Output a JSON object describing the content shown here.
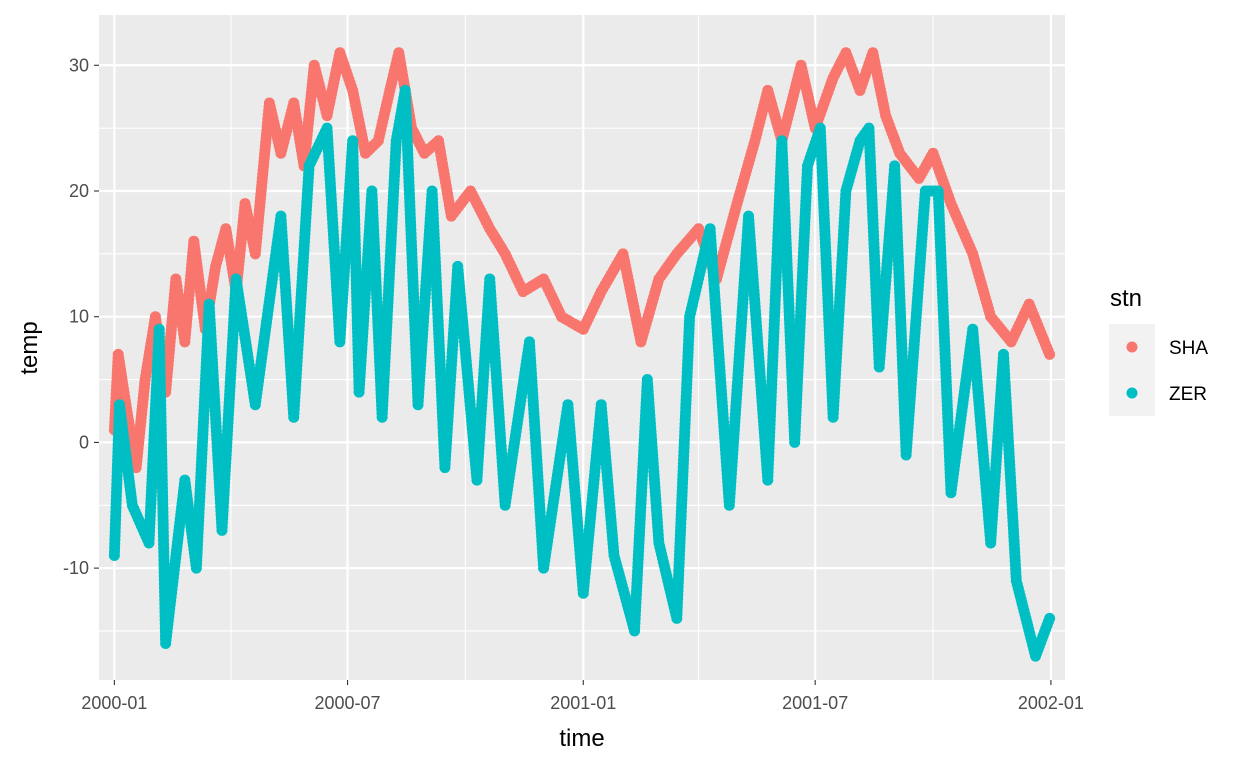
{
  "colors": {
    "panel_background": "#EBEBEB",
    "grid": "#FFFFFF",
    "SHA": "#F8766D",
    "ZER": "#00BFC4"
  },
  "chart_data": {
    "type": "scatter",
    "xlabel": "time",
    "ylabel": "temp",
    "x_scale": "date",
    "xlim": [
      "1999-12-20",
      "2002-01-12"
    ],
    "ylim": [
      -18.9,
      34.0
    ],
    "x_ticks": [
      "2000-01",
      "2000-07",
      "2001-01",
      "2001-07",
      "2002-01"
    ],
    "x_tick_dates": [
      "2000-01-01",
      "2000-07-01",
      "2001-01-01",
      "2001-07-01",
      "2002-01-01"
    ],
    "x_minor_tick_dates": [
      "2000-04-01",
      "2000-10-01",
      "2001-04-01",
      "2001-10-01"
    ],
    "y_ticks": [
      -10,
      0,
      10,
      20,
      30
    ],
    "y_tick_labels": [
      "-10",
      "0",
      "10",
      "20",
      "30"
    ],
    "y_minor_ticks": [
      -15,
      -5,
      5,
      15,
      25
    ],
    "grid": true,
    "legend": {
      "title": "stn",
      "position": "right"
    },
    "series": [
      {
        "name": "SHA",
        "color": "#F8766D",
        "points": [
          [
            "2000-01-01",
            1
          ],
          [
            "2000-01-04",
            7
          ],
          [
            "2000-01-10",
            3
          ],
          [
            "2000-01-18",
            -2
          ],
          [
            "2000-01-25",
            5
          ],
          [
            "2000-02-02",
            10
          ],
          [
            "2000-02-10",
            4
          ],
          [
            "2000-02-18",
            13
          ],
          [
            "2000-02-25",
            8
          ],
          [
            "2000-03-03",
            16
          ],
          [
            "2000-03-12",
            9
          ],
          [
            "2000-03-20",
            14
          ],
          [
            "2000-03-28",
            17
          ],
          [
            "2000-04-05",
            12
          ],
          [
            "2000-04-12",
            19
          ],
          [
            "2000-04-20",
            15
          ],
          [
            "2000-05-01",
            27
          ],
          [
            "2000-05-10",
            23
          ],
          [
            "2000-05-20",
            27
          ],
          [
            "2000-05-28",
            22
          ],
          [
            "2000-06-05",
            30
          ],
          [
            "2000-06-15",
            26
          ],
          [
            "2000-06-25",
            31
          ],
          [
            "2000-07-05",
            28
          ],
          [
            "2000-07-15",
            23
          ],
          [
            "2000-07-25",
            24
          ],
          [
            "2000-08-03",
            28
          ],
          [
            "2000-08-10",
            31
          ],
          [
            "2000-08-20",
            25
          ],
          [
            "2000-08-30",
            23
          ],
          [
            "2000-09-10",
            24
          ],
          [
            "2000-09-20",
            18
          ],
          [
            "2000-10-05",
            20
          ],
          [
            "2000-10-20",
            17
          ],
          [
            "2000-11-01",
            15
          ],
          [
            "2000-11-15",
            12
          ],
          [
            "2000-12-01",
            13
          ],
          [
            "2000-12-15",
            10
          ],
          [
            "2001-01-01",
            9
          ],
          [
            "2001-01-15",
            12
          ],
          [
            "2001-02-01",
            15
          ],
          [
            "2001-02-15",
            8
          ],
          [
            "2001-03-01",
            13
          ],
          [
            "2001-03-15",
            15
          ],
          [
            "2001-04-01",
            17
          ],
          [
            "2001-04-15",
            13
          ],
          [
            "2001-05-01",
            19
          ],
          [
            "2001-05-15",
            24
          ],
          [
            "2001-05-25",
            28
          ],
          [
            "2001-06-05",
            24
          ],
          [
            "2001-06-20",
            30
          ],
          [
            "2001-07-01",
            25
          ],
          [
            "2001-07-15",
            29
          ],
          [
            "2001-07-25",
            31
          ],
          [
            "2001-08-05",
            28
          ],
          [
            "2001-08-15",
            31
          ],
          [
            "2001-08-25",
            26
          ],
          [
            "2001-09-05",
            23
          ],
          [
            "2001-09-20",
            21
          ],
          [
            "2001-10-01",
            23
          ],
          [
            "2001-10-15",
            19
          ],
          [
            "2001-11-01",
            15
          ],
          [
            "2001-11-15",
            10
          ],
          [
            "2001-12-01",
            8
          ],
          [
            "2001-12-15",
            11
          ],
          [
            "2001-12-31",
            7
          ]
        ]
      },
      {
        "name": "ZER",
        "color": "#00BFC4",
        "points": [
          [
            "2000-01-01",
            -9
          ],
          [
            "2000-01-05",
            3
          ],
          [
            "2000-01-15",
            -5
          ],
          [
            "2000-01-28",
            -8
          ],
          [
            "2000-02-05",
            9
          ],
          [
            "2000-02-10",
            -16
          ],
          [
            "2000-02-25",
            -3
          ],
          [
            "2000-03-05",
            -10
          ],
          [
            "2000-03-15",
            11
          ],
          [
            "2000-03-25",
            -7
          ],
          [
            "2000-04-05",
            13
          ],
          [
            "2000-04-20",
            3
          ],
          [
            "2000-05-10",
            18
          ],
          [
            "2000-05-20",
            2
          ],
          [
            "2000-06-01",
            22
          ],
          [
            "2000-06-15",
            25
          ],
          [
            "2000-06-25",
            8
          ],
          [
            "2000-07-05",
            24
          ],
          [
            "2000-07-10",
            4
          ],
          [
            "2000-07-20",
            20
          ],
          [
            "2000-07-28",
            2
          ],
          [
            "2000-08-08",
            24
          ],
          [
            "2000-08-15",
            28
          ],
          [
            "2000-08-25",
            3
          ],
          [
            "2000-09-05",
            20
          ],
          [
            "2000-09-15",
            -2
          ],
          [
            "2000-09-25",
            14
          ],
          [
            "2000-10-10",
            -3
          ],
          [
            "2000-10-20",
            13
          ],
          [
            "2000-11-01",
            -5
          ],
          [
            "2000-11-20",
            8
          ],
          [
            "2000-12-01",
            -10
          ],
          [
            "2000-12-20",
            3
          ],
          [
            "2001-01-01",
            -12
          ],
          [
            "2001-01-15",
            3
          ],
          [
            "2001-01-25",
            -9
          ],
          [
            "2001-02-10",
            -15
          ],
          [
            "2001-02-20",
            5
          ],
          [
            "2001-03-01",
            -8
          ],
          [
            "2001-03-15",
            -14
          ],
          [
            "2001-03-25",
            10
          ],
          [
            "2001-04-10",
            17
          ],
          [
            "2001-04-25",
            -5
          ],
          [
            "2001-05-10",
            18
          ],
          [
            "2001-05-25",
            -3
          ],
          [
            "2001-06-05",
            24
          ],
          [
            "2001-06-15",
            0
          ],
          [
            "2001-06-25",
            22
          ],
          [
            "2001-07-05",
            25
          ],
          [
            "2001-07-15",
            2
          ],
          [
            "2001-07-25",
            20
          ],
          [
            "2001-08-05",
            24
          ],
          [
            "2001-08-12",
            25
          ],
          [
            "2001-08-20",
            6
          ],
          [
            "2001-09-01",
            22
          ],
          [
            "2001-09-10",
            -1
          ],
          [
            "2001-09-25",
            20
          ],
          [
            "2001-10-05",
            20
          ],
          [
            "2001-10-15",
            -4
          ],
          [
            "2001-11-01",
            9
          ],
          [
            "2001-11-15",
            -8
          ],
          [
            "2001-11-25",
            7
          ],
          [
            "2001-12-05",
            -11
          ],
          [
            "2001-12-20",
            -17
          ],
          [
            "2001-12-31",
            -14
          ]
        ]
      }
    ]
  }
}
